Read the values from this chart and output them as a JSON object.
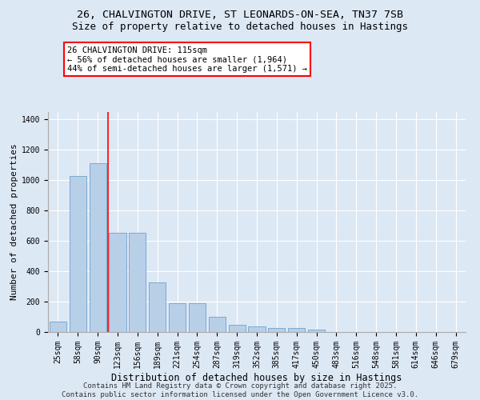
{
  "title": "26, CHALVINGTON DRIVE, ST LEONARDS-ON-SEA, TN37 7SB",
  "subtitle": "Size of property relative to detached houses in Hastings",
  "xlabel": "Distribution of detached houses by size in Hastings",
  "ylabel": "Number of detached properties",
  "categories": [
    "25sqm",
    "58sqm",
    "90sqm",
    "123sqm",
    "156sqm",
    "189sqm",
    "221sqm",
    "254sqm",
    "287sqm",
    "319sqm",
    "352sqm",
    "385sqm",
    "417sqm",
    "450sqm",
    "483sqm",
    "516sqm",
    "548sqm",
    "581sqm",
    "614sqm",
    "646sqm",
    "679sqm"
  ],
  "values": [
    70,
    1030,
    1110,
    655,
    655,
    325,
    190,
    190,
    100,
    50,
    35,
    25,
    25,
    15,
    0,
    0,
    0,
    0,
    0,
    0,
    0
  ],
  "bar_color": "#b8cfe8",
  "bar_edgecolor": "#7aaad0",
  "vline_color": "red",
  "annotation_text": "26 CHALVINGTON DRIVE: 115sqm\n← 56% of detached houses are smaller (1,964)\n44% of semi-detached houses are larger (1,571) →",
  "annotation_box_edgecolor": "red",
  "annotation_text_fontsize": 7.5,
  "ylim": [
    0,
    1450
  ],
  "yticks": [
    0,
    200,
    400,
    600,
    800,
    1000,
    1200,
    1400
  ],
  "bg_color": "#dde8f5",
  "plot_bg_color": "#dde8f5",
  "grid_color": "#ffffff",
  "title_fontsize": 9.5,
  "subtitle_fontsize": 9,
  "ylabel_fontsize": 8,
  "xlabel_fontsize": 8.5,
  "tick_fontsize": 7,
  "footer_text": "Contains HM Land Registry data © Crown copyright and database right 2025.\nContains public sector information licensed under the Open Government Licence v3.0.",
  "footer_fontsize": 6.5
}
